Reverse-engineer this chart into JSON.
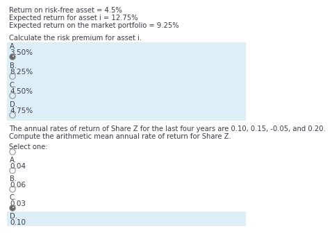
{
  "bg_color": "#ffffff",
  "highlight_color": "#ddeef6",
  "text_color": "#3a3a4a",
  "info_lines": [
    "Return on risk-free asset = 4.5%",
    "Expected return for asset i = 12.75%",
    "Expected return on the market portfolio = 9.25%"
  ],
  "question1": "Calculate the risk premium for asset i.",
  "q1_options": [
    {
      "label": "A.",
      "value": "3.50%",
      "selected": true
    },
    {
      "label": "B.",
      "value": "8.25%",
      "selected": false
    },
    {
      "label": "C.",
      "value": "4.50%",
      "selected": false
    },
    {
      "label": "D.",
      "value": "4.75%",
      "selected": false
    }
  ],
  "question2_lines": [
    "The annual rates of return of Share Z for the last four years are 0.10, 0.15, -0.05, and 0.20.",
    "Compute the arithmetic mean annual rate of return for Share Z."
  ],
  "select_one": "Select one:",
  "q2_options": [
    {
      "label": "A.",
      "value": "0.04",
      "selected": false
    },
    {
      "label": "B.",
      "value": "0.06",
      "selected": false
    },
    {
      "label": "C.",
      "value": "0.03",
      "selected": true
    },
    {
      "label": "D.",
      "value": "0.10",
      "selected": false
    }
  ]
}
